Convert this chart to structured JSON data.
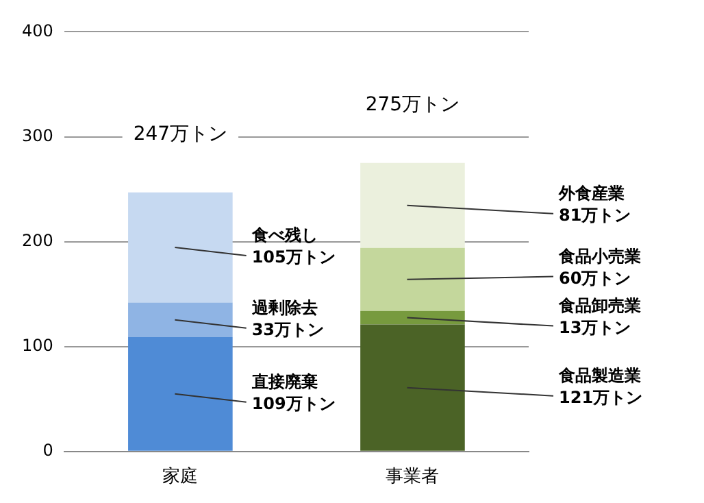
{
  "chart_data": {
    "type": "bar",
    "stacked": true,
    "categories": [
      "家庭",
      "事業者"
    ],
    "series": [
      {
        "name": "直接廃棄",
        "color": "#4f8bd6",
        "values": [
          109,
          null
        ],
        "value_labels": [
          "109万トン",
          null
        ]
      },
      {
        "name": "過剰除去",
        "color": "#8fb4e4",
        "values": [
          33,
          null
        ],
        "value_labels": [
          "33万トン",
          null
        ]
      },
      {
        "name": "食べ残し",
        "color": "#c6d9f1",
        "values": [
          105,
          null
        ],
        "value_labels": [
          "105万トン",
          null
        ]
      },
      {
        "name": "食品製造業",
        "color": "#4b6326",
        "values": [
          null,
          121
        ],
        "value_labels": [
          null,
          "121万トン"
        ]
      },
      {
        "name": "食品卸売業",
        "color": "#779a3e",
        "values": [
          null,
          13
        ],
        "value_labels": [
          null,
          "13万トン"
        ]
      },
      {
        "name": "食品小売業",
        "color": "#c4d79c",
        "values": [
          null,
          60
        ],
        "value_labels": [
          null,
          "60万トン"
        ]
      },
      {
        "name": "外食産業",
        "color": "#ebf0dd",
        "values": [
          null,
          81
        ],
        "value_labels": [
          null,
          "81万トン"
        ]
      }
    ],
    "totals": [
      "247万トン",
      "275万トン"
    ],
    "ylim": [
      0,
      400
    ],
    "yticks": [
      0,
      100,
      200,
      300,
      400
    ],
    "grid": "y",
    "legend": false
  }
}
